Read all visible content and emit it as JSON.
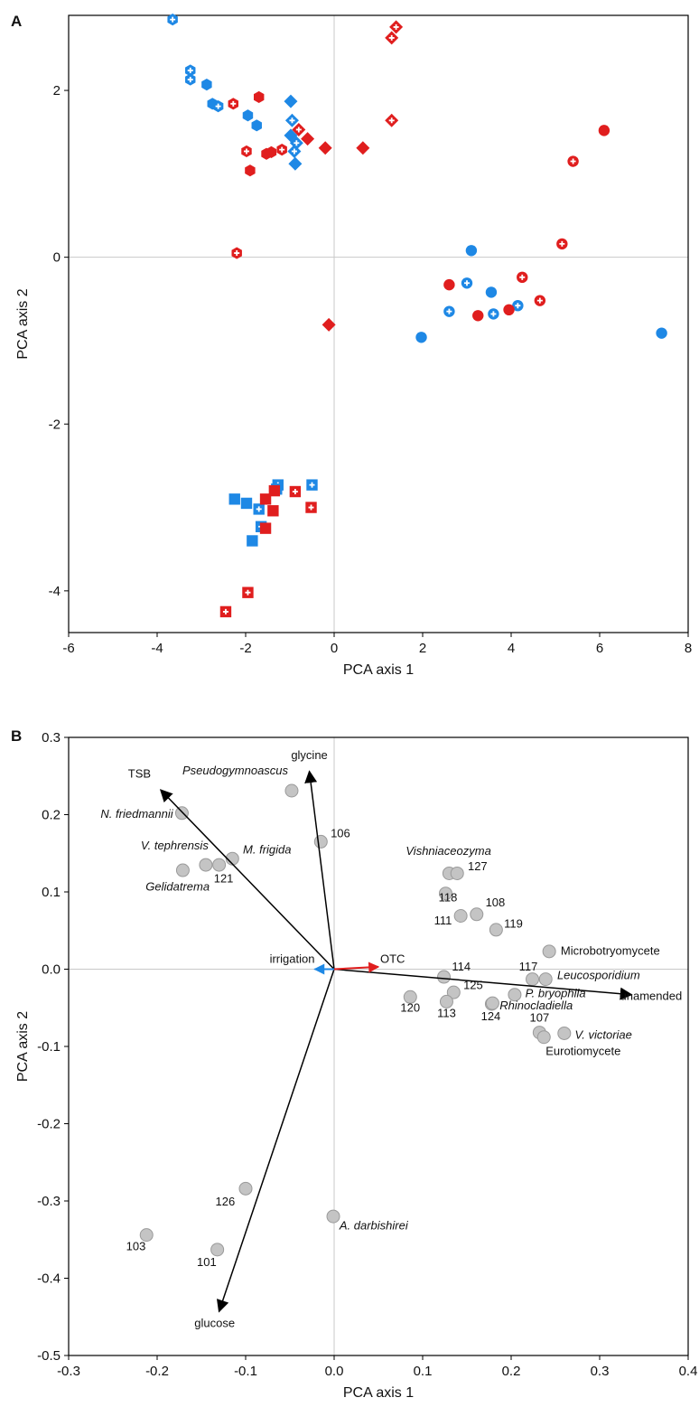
{
  "panels": [
    {
      "letter": "A",
      "chart_data": {
        "type": "scatter",
        "xlabel": "PCA axis 1",
        "ylabel": "PCA axis 2",
        "xlim": [
          -6,
          8
        ],
        "ylim": [
          -4.5,
          2.9
        ],
        "xticks": [
          "-6",
          "-4",
          "-2",
          "0",
          "2",
          "4",
          "6",
          "8"
        ],
        "yticks": [
          "-4",
          "-2",
          "0",
          "2"
        ],
        "reference_lines": {
          "x": 0,
          "y": 0
        },
        "colors": {
          "blue": "#1e88e5",
          "red": "#e01e1e"
        },
        "marker_notes": "shape = group (hexagon, diamond, circle, square); color = blue or red; filled vs white-plus",
        "points": [
          {
            "x": -3.65,
            "y": 2.85,
            "shape": "hexagon",
            "color": "blue",
            "style": "plus"
          },
          {
            "x": -3.25,
            "y": 2.24,
            "shape": "hexagon",
            "color": "blue",
            "style": "plus"
          },
          {
            "x": -3.25,
            "y": 2.13,
            "shape": "hexagon",
            "color": "blue",
            "style": "plus"
          },
          {
            "x": -2.88,
            "y": 2.07,
            "shape": "hexagon",
            "color": "blue",
            "style": "filled"
          },
          {
            "x": -2.75,
            "y": 1.84,
            "shape": "hexagon",
            "color": "blue",
            "style": "filled"
          },
          {
            "x": -2.62,
            "y": 1.81,
            "shape": "hexagon",
            "color": "blue",
            "style": "plus"
          },
          {
            "x": -1.95,
            "y": 1.7,
            "shape": "hexagon",
            "color": "blue",
            "style": "filled"
          },
          {
            "x": -1.75,
            "y": 1.58,
            "shape": "hexagon",
            "color": "blue",
            "style": "filled"
          },
          {
            "x": -2.28,
            "y": 1.84,
            "shape": "hexagon",
            "color": "red",
            "style": "plus"
          },
          {
            "x": -1.7,
            "y": 1.92,
            "shape": "hexagon",
            "color": "red",
            "style": "filled"
          },
          {
            "x": -1.98,
            "y": 1.27,
            "shape": "hexagon",
            "color": "red",
            "style": "plus"
          },
          {
            "x": -1.53,
            "y": 1.24,
            "shape": "hexagon",
            "color": "red",
            "style": "filled"
          },
          {
            "x": -1.42,
            "y": 1.26,
            "shape": "hexagon",
            "color": "red",
            "style": "filled"
          },
          {
            "x": -1.18,
            "y": 1.29,
            "shape": "hexagon",
            "color": "red",
            "style": "plus"
          },
          {
            "x": -1.9,
            "y": 1.04,
            "shape": "hexagon",
            "color": "red",
            "style": "filled"
          },
          {
            "x": -2.2,
            "y": 0.05,
            "shape": "hexagon",
            "color": "red",
            "style": "plus"
          },
          {
            "x": -0.98,
            "y": 1.87,
            "shape": "diamond",
            "color": "blue",
            "style": "filled"
          },
          {
            "x": -0.95,
            "y": 1.64,
            "shape": "diamond",
            "color": "blue",
            "style": "plus"
          },
          {
            "x": -0.98,
            "y": 1.46,
            "shape": "diamond",
            "color": "blue",
            "style": "filled"
          },
          {
            "x": -0.85,
            "y": 1.37,
            "shape": "diamond",
            "color": "blue",
            "style": "plus"
          },
          {
            "x": -0.9,
            "y": 1.27,
            "shape": "diamond",
            "color": "blue",
            "style": "plus"
          },
          {
            "x": -0.88,
            "y": 1.12,
            "shape": "diamond",
            "color": "blue",
            "style": "filled"
          },
          {
            "x": 1.4,
            "y": 2.76,
            "shape": "diamond",
            "color": "red",
            "style": "plus"
          },
          {
            "x": 1.3,
            "y": 2.63,
            "shape": "diamond",
            "color": "red",
            "style": "plus"
          },
          {
            "x": 1.3,
            "y": 1.64,
            "shape": "diamond",
            "color": "red",
            "style": "plus"
          },
          {
            "x": -0.8,
            "y": 1.53,
            "shape": "diamond",
            "color": "red",
            "style": "plus"
          },
          {
            "x": -0.6,
            "y": 1.42,
            "shape": "diamond",
            "color": "red",
            "style": "filled"
          },
          {
            "x": -0.2,
            "y": 1.31,
            "shape": "diamond",
            "color": "red",
            "style": "filled"
          },
          {
            "x": 0.65,
            "y": 1.31,
            "shape": "diamond",
            "color": "red",
            "style": "filled"
          },
          {
            "x": -0.12,
            "y": -0.81,
            "shape": "diamond",
            "color": "red",
            "style": "filled"
          },
          {
            "x": 3.1,
            "y": 0.08,
            "shape": "circle",
            "color": "blue",
            "style": "filled"
          },
          {
            "x": 3.0,
            "y": -0.31,
            "shape": "circle",
            "color": "blue",
            "style": "plus"
          },
          {
            "x": 3.55,
            "y": -0.42,
            "shape": "circle",
            "color": "blue",
            "style": "filled"
          },
          {
            "x": 2.6,
            "y": -0.65,
            "shape": "circle",
            "color": "blue",
            "style": "plus"
          },
          {
            "x": 3.6,
            "y": -0.68,
            "shape": "circle",
            "color": "blue",
            "style": "plus"
          },
          {
            "x": 4.15,
            "y": -0.58,
            "shape": "circle",
            "color": "blue",
            "style": "plus"
          },
          {
            "x": 1.97,
            "y": -0.96,
            "shape": "circle",
            "color": "blue",
            "style": "filled"
          },
          {
            "x": 7.4,
            "y": -0.91,
            "shape": "circle",
            "color": "blue",
            "style": "filled"
          },
          {
            "x": 6.1,
            "y": 1.52,
            "shape": "circle",
            "color": "red",
            "style": "filled"
          },
          {
            "x": 5.4,
            "y": 1.15,
            "shape": "circle",
            "color": "red",
            "style": "plus"
          },
          {
            "x": 5.15,
            "y": 0.16,
            "shape": "circle",
            "color": "red",
            "style": "plus"
          },
          {
            "x": 4.25,
            "y": -0.24,
            "shape": "circle",
            "color": "red",
            "style": "plus"
          },
          {
            "x": 2.6,
            "y": -0.33,
            "shape": "circle",
            "color": "red",
            "style": "filled"
          },
          {
            "x": 3.25,
            "y": -0.7,
            "shape": "circle",
            "color": "red",
            "style": "filled"
          },
          {
            "x": 3.95,
            "y": -0.63,
            "shape": "circle",
            "color": "red",
            "style": "filled"
          },
          {
            "x": 4.65,
            "y": -0.52,
            "shape": "circle",
            "color": "red",
            "style": "plus"
          },
          {
            "x": -2.25,
            "y": -2.9,
            "shape": "square",
            "color": "blue",
            "style": "filled"
          },
          {
            "x": -1.98,
            "y": -2.95,
            "shape": "square",
            "color": "blue",
            "style": "filled"
          },
          {
            "x": -1.85,
            "y": -3.4,
            "shape": "square",
            "color": "blue",
            "style": "filled"
          },
          {
            "x": -1.7,
            "y": -3.02,
            "shape": "square",
            "color": "blue",
            "style": "plus"
          },
          {
            "x": -1.65,
            "y": -3.23,
            "shape": "square",
            "color": "blue",
            "style": "plus"
          },
          {
            "x": -1.27,
            "y": -2.73,
            "shape": "square",
            "color": "blue",
            "style": "plus"
          },
          {
            "x": -1.3,
            "y": -2.78,
            "shape": "square",
            "color": "blue",
            "style": "filled"
          },
          {
            "x": -0.5,
            "y": -2.73,
            "shape": "square",
            "color": "blue",
            "style": "plus"
          },
          {
            "x": -1.55,
            "y": -2.9,
            "shape": "square",
            "color": "red",
            "style": "filled"
          },
          {
            "x": -1.35,
            "y": -2.8,
            "shape": "square",
            "color": "red",
            "style": "filled"
          },
          {
            "x": -1.38,
            "y": -3.04,
            "shape": "square",
            "color": "red",
            "style": "filled"
          },
          {
            "x": -1.55,
            "y": -3.25,
            "shape": "square",
            "color": "red",
            "style": "filled"
          },
          {
            "x": -0.88,
            "y": -2.81,
            "shape": "square",
            "color": "red",
            "style": "plus"
          },
          {
            "x": -0.52,
            "y": -3.0,
            "shape": "square",
            "color": "red",
            "style": "plus"
          },
          {
            "x": -1.95,
            "y": -4.02,
            "shape": "square",
            "color": "red",
            "style": "plus"
          },
          {
            "x": -2.45,
            "y": -4.25,
            "shape": "square",
            "color": "red",
            "style": "plus"
          }
        ]
      }
    },
    {
      "letter": "B",
      "chart_data": {
        "type": "scatter",
        "subtype": "biplot",
        "xlabel": "PCA axis 1",
        "ylabel": "PCA axis 2",
        "xlim": [
          -0.3,
          0.4
        ],
        "ylim": [
          -0.5,
          0.3
        ],
        "xticks": [
          "-0.3",
          "-0.2",
          "-0.1",
          "0.0",
          "0.1",
          "0.2",
          "0.3",
          "0.4"
        ],
        "yticks": [
          "-0.5",
          "-0.4",
          "-0.3",
          "-0.2",
          "-0.1",
          "0.0",
          "0.1",
          "0.2",
          "0.3"
        ],
        "reference_lines": {
          "x": 0,
          "y": 0
        },
        "colors": {
          "point": "#c4c4c4",
          "arrow": "#000000",
          "otc": "#e01e1e",
          "irrigation": "#1e88e5"
        },
        "vectors": [
          {
            "name": "TSB",
            "x": -0.196,
            "y": 0.232,
            "color": "arrow",
            "lx": -0.22,
            "ly": 0.248,
            "anchor": "middle"
          },
          {
            "name": "glycine",
            "x": -0.028,
            "y": 0.256,
            "color": "arrow",
            "lx": -0.028,
            "ly": 0.272,
            "anchor": "middle"
          },
          {
            "name": "glucose",
            "x": -0.13,
            "y": -0.443,
            "color": "arrow",
            "lx": -0.135,
            "ly": -0.463,
            "anchor": "middle"
          },
          {
            "name": "unamended",
            "x": 0.336,
            "y": -0.033,
            "color": "arrow",
            "lx": 0.323,
            "ly": -0.04,
            "anchor": "start"
          },
          {
            "name": "OTC",
            "x": 0.05,
            "y": 0.003,
            "color": "otc",
            "lx": 0.052,
            "ly": 0.008,
            "anchor": "start"
          },
          {
            "name": "irrigation",
            "x": -0.022,
            "y": 0.0,
            "color": "irrigation",
            "lx": -0.022,
            "ly": 0.008,
            "anchor": "end"
          }
        ],
        "points": [
          {
            "label": "Pseudogymnoascus",
            "x": -0.048,
            "y": 0.231,
            "lx": -0.052,
            "ly": 0.252,
            "italic": true,
            "anchor": "end"
          },
          {
            "label": "N. friedmannii",
            "x": -0.172,
            "y": 0.202,
            "lx": -0.182,
            "ly": 0.196,
            "italic": true,
            "anchor": "end"
          },
          {
            "label": "106",
            "x": -0.015,
            "y": 0.165,
            "lx": -0.004,
            "ly": 0.171,
            "italic": false,
            "anchor": "start"
          },
          {
            "label": "V. tephrensis",
            "x": -0.145,
            "y": 0.135,
            "lx": -0.142,
            "ly": 0.155,
            "italic": true,
            "anchor": "end"
          },
          {
            "label": "M. frigida",
            "x": -0.115,
            "y": 0.143,
            "lx": -0.103,
            "ly": 0.15,
            "italic": true,
            "anchor": "start"
          },
          {
            "label": "121",
            "x": -0.13,
            "y": 0.135,
            "lx": -0.136,
            "ly": 0.112,
            "italic": false,
            "anchor": "start"
          },
          {
            "label": "Gelidatrema",
            "x": -0.171,
            "y": 0.128,
            "lx": -0.213,
            "ly": 0.102,
            "italic": true,
            "anchor": "start"
          },
          {
            "label": "Vishniaceozyma",
            "x": 0.13,
            "y": 0.124,
            "lx": 0.081,
            "ly": 0.148,
            "italic": true,
            "anchor": "start"
          },
          {
            "label": "127",
            "x": 0.139,
            "y": 0.124,
            "lx": 0.151,
            "ly": 0.128,
            "italic": false,
            "anchor": "start"
          },
          {
            "label": "118",
            "x": 0.126,
            "y": 0.098,
            "lx": 0.118,
            "ly": 0.088,
            "italic": false,
            "anchor": "start"
          },
          {
            "label": "108",
            "x": 0.161,
            "y": 0.071,
            "lx": 0.171,
            "ly": 0.081,
            "italic": false,
            "anchor": "start"
          },
          {
            "label": "111",
            "x": 0.143,
            "y": 0.069,
            "lx": 0.133,
            "ly": 0.058,
            "italic": false,
            "anchor": "end"
          },
          {
            "label": "119",
            "x": 0.183,
            "y": 0.051,
            "lx": 0.192,
            "ly": 0.054,
            "italic": false,
            "anchor": "start"
          },
          {
            "label": "Microbotryomycete",
            "x": 0.243,
            "y": 0.023,
            "lx": 0.256,
            "ly": 0.019,
            "italic": false,
            "anchor": "start"
          },
          {
            "label": "117",
            "x": 0.224,
            "y": -0.013,
            "lx": 0.23,
            "ly": -0.002,
            "italic": false,
            "anchor": "end"
          },
          {
            "label": "Leucosporidium",
            "x": 0.239,
            "y": -0.013,
            "lx": 0.252,
            "ly": -0.013,
            "italic": true,
            "anchor": "start"
          },
          {
            "label": "114",
            "x": 0.124,
            "y": -0.01,
            "lx": 0.133,
            "ly": -0.002,
            "italic": false,
            "anchor": "start"
          },
          {
            "label": "125",
            "x": 0.135,
            "y": -0.03,
            "lx": 0.146,
            "ly": -0.026,
            "italic": false,
            "anchor": "start"
          },
          {
            "label": "P. bryophila",
            "x": 0.204,
            "y": -0.033,
            "lx": 0.216,
            "ly": -0.036,
            "italic": true,
            "anchor": "start"
          },
          {
            "label": "120",
            "x": 0.086,
            "y": -0.036,
            "lx": 0.086,
            "ly": -0.055,
            "italic": false,
            "anchor": "middle"
          },
          {
            "label": "113",
            "x": 0.127,
            "y": -0.042,
            "lx": 0.127,
            "ly": -0.062,
            "italic": false,
            "anchor": "middle"
          },
          {
            "label": "Rhinocladiella",
            "x": 0.178,
            "y": -0.045,
            "lx": 0.187,
            "ly": -0.052,
            "italic": true,
            "anchor": "start"
          },
          {
            "label": "124",
            "x": 0.179,
            "y": -0.044,
            "lx": 0.177,
            "ly": -0.066,
            "italic": false,
            "anchor": "middle"
          },
          {
            "label": "107",
            "x": 0.232,
            "y": -0.082,
            "lx": 0.232,
            "ly": -0.068,
            "italic": false,
            "anchor": "middle"
          },
          {
            "label": "V. victoriae",
            "x": 0.26,
            "y": -0.083,
            "lx": 0.272,
            "ly": -0.09,
            "italic": true,
            "anchor": "start"
          },
          {
            "label": "Eurotiomycete",
            "x": 0.237,
            "y": -0.088,
            "lx": 0.239,
            "ly": -0.111,
            "italic": false,
            "anchor": "start"
          },
          {
            "label": "126",
            "x": -0.1,
            "y": -0.284,
            "lx": -0.112,
            "ly": -0.306,
            "italic": false,
            "anchor": "end"
          },
          {
            "label": "A. darbishirei",
            "x": -0.001,
            "y": -0.32,
            "lx": 0.006,
            "ly": -0.337,
            "italic": true,
            "anchor": "start"
          },
          {
            "label": "103",
            "x": -0.212,
            "y": -0.344,
            "lx": -0.224,
            "ly": -0.364,
            "italic": false,
            "anchor": "middle"
          },
          {
            "label": "101",
            "x": -0.132,
            "y": -0.363,
            "lx": -0.144,
            "ly": -0.384,
            "italic": false,
            "anchor": "middle"
          }
        ]
      }
    }
  ]
}
